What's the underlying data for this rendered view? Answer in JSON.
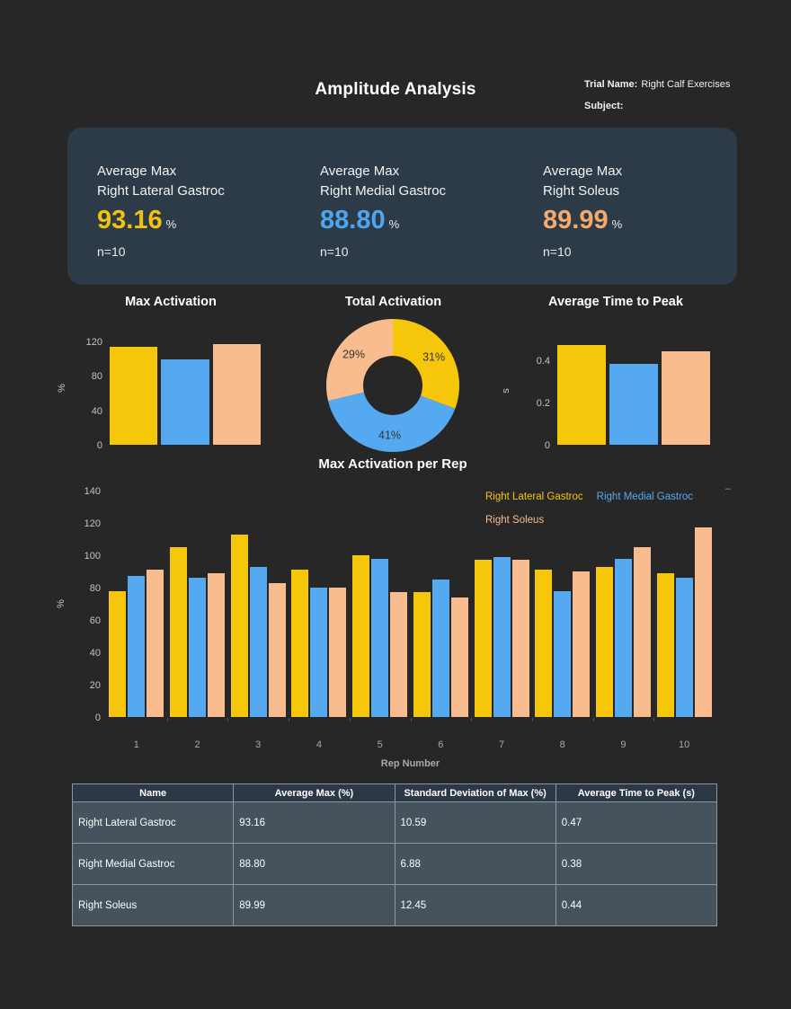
{
  "header": {
    "title": "Amplitude Analysis",
    "trial_name_label": "Trial Name:",
    "trial_name_value": "Right Calf Exercises",
    "subject_label": "Subject:",
    "subject_value": ""
  },
  "summary_stats": [
    {
      "label_line1": "Average Max",
      "label_line2": "Right Lateral Gastroc",
      "value": "93.16",
      "unit": "%",
      "n": "n=10",
      "color": "#F2C30D"
    },
    {
      "label_line1": "Average Max",
      "label_line2": "Right Medial Gastroc",
      "value": "88.80",
      "unit": "%",
      "n": "n=10",
      "color": "#4FA5F0"
    },
    {
      "label_line1": "Average Max",
      "label_line2": "Right Soleus",
      "value": "89.99",
      "unit": "%",
      "n": "n=10",
      "color": "#F5A96B"
    }
  ],
  "series_colors": [
    "#F5C60A",
    "#54A9F0",
    "#F9BC8E"
  ],
  "chart_data": [
    {
      "type": "bar",
      "title": "Max Activation",
      "categories": [
        "Right Lateral Gastroc",
        "Right Medial Gastroc",
        "Right Soleus"
      ],
      "values": [
        113,
        99,
        117
      ],
      "ylabel": "%",
      "yticks": [
        0,
        40,
        80,
        120
      ],
      "ylim": [
        0,
        130
      ],
      "grid": false
    },
    {
      "type": "donut",
      "title": "Total Activation",
      "labels": [
        "Right Lateral Gastroc",
        "Right Medial Gastroc",
        "Right Soleus"
      ],
      "values": [
        31,
        41,
        29
      ],
      "value_labels": [
        "31%",
        "41%",
        "29%"
      ]
    },
    {
      "type": "bar",
      "title": "Average Time to Peak",
      "categories": [
        "Right Lateral Gastroc",
        "Right Medial Gastroc",
        "Right Soleus"
      ],
      "values": [
        0.47,
        0.38,
        0.44
      ],
      "ylabel": "s",
      "yticks": [
        0,
        0.2,
        0.4
      ],
      "ytick_labels": [
        "0",
        "0.2",
        "0.4"
      ],
      "ylim": [
        0,
        0.5
      ],
      "grid": false
    },
    {
      "type": "grouped_bar",
      "title": "Max Activation per Rep",
      "categories": [
        "1",
        "2",
        "3",
        "4",
        "5",
        "6",
        "7",
        "8",
        "9",
        "10"
      ],
      "xlabel": "Rep Number",
      "ylabel": "%",
      "yticks": [
        0,
        20,
        40,
        60,
        80,
        100,
        120,
        140
      ],
      "ylim": [
        0,
        140
      ],
      "grid": false,
      "legend_position": "top-right",
      "series": [
        {
          "name": "Right Lateral Gastroc",
          "values": [
            78,
            105,
            113,
            91,
            100,
            77,
            97,
            91,
            93,
            89
          ]
        },
        {
          "name": "Right Medial Gastroc",
          "values": [
            87,
            86,
            93,
            80,
            98,
            85,
            99,
            78,
            98,
            86
          ]
        },
        {
          "name": "Right Soleus",
          "values": [
            91,
            89,
            83,
            80,
            77,
            74,
            97,
            90,
            105,
            117
          ]
        }
      ],
      "legend_overflow_indicator": "–"
    }
  ],
  "table": {
    "columns": [
      "Name",
      "Average Max (%)",
      "Standard Deviation of Max (%)",
      "Average Time to Peak (s)"
    ],
    "rows": [
      [
        "Right Lateral Gastroc",
        "93.16",
        "10.59",
        "0.47"
      ],
      [
        "Right Medial Gastroc",
        "88.80",
        "6.88",
        "0.38"
      ],
      [
        "Right Soleus",
        "89.99",
        "12.45",
        "0.44"
      ]
    ]
  }
}
